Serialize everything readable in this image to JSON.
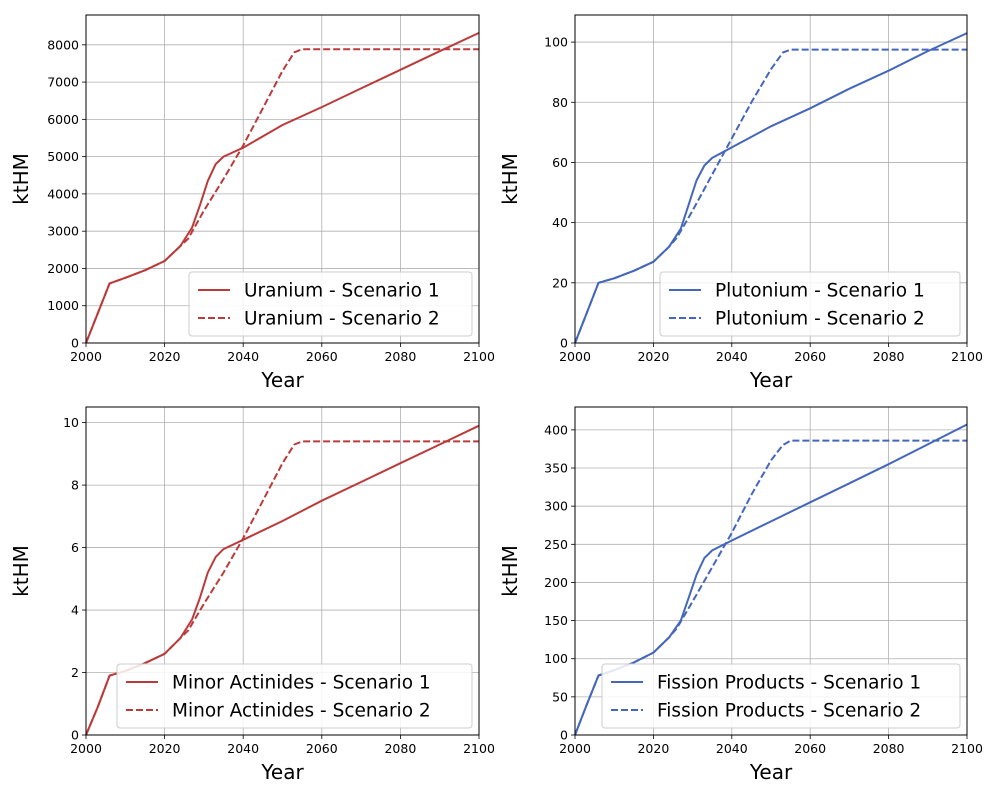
{
  "figure": {
    "background": "#ffffff"
  },
  "chart_data": [
    {
      "type": "line",
      "id": "uranium",
      "xlabel": "Year",
      "ylabel": "ktHM",
      "xlim": [
        2000,
        2100
      ],
      "ylim": [
        0,
        8800
      ],
      "xticks": [
        2000,
        2020,
        2040,
        2060,
        2080,
        2100
      ],
      "yticks": [
        0,
        1000,
        2000,
        3000,
        4000,
        5000,
        6000,
        7000,
        8000
      ],
      "grid": true,
      "legend_position": "lower-right",
      "series": [
        {
          "name": "Uranium - Scenario 1",
          "color": "#bb3b3b",
          "dash": "solid",
          "x": [
            2000,
            2003,
            2006,
            2010,
            2015,
            2020,
            2024,
            2027,
            2029,
            2031,
            2033,
            2035,
            2040,
            2050,
            2060,
            2070,
            2080,
            2090,
            2100
          ],
          "y": [
            0,
            800,
            1600,
            1750,
            1950,
            2200,
            2600,
            3100,
            3700,
            4350,
            4800,
            5000,
            5240,
            5850,
            6330,
            6830,
            7330,
            7830,
            8320
          ]
        },
        {
          "name": "Uranium - Scenario 2",
          "color": "#bb3b3b",
          "dash": "dashed",
          "x": [
            2000,
            2003,
            2006,
            2010,
            2015,
            2020,
            2024,
            2026,
            2030,
            2035,
            2040,
            2045,
            2050,
            2053,
            2055,
            2060,
            2080,
            2100
          ],
          "y": [
            0,
            800,
            1600,
            1750,
            1950,
            2200,
            2600,
            2800,
            3550,
            4400,
            5300,
            6300,
            7300,
            7800,
            7880,
            7880,
            7880,
            7880
          ]
        }
      ]
    },
    {
      "type": "line",
      "id": "plutonium",
      "xlabel": "Year",
      "ylabel": "ktHM",
      "xlim": [
        2000,
        2100
      ],
      "ylim": [
        0,
        109
      ],
      "xticks": [
        2000,
        2020,
        2040,
        2060,
        2080,
        2100
      ],
      "yticks": [
        0,
        20,
        40,
        60,
        80,
        100
      ],
      "grid": true,
      "legend_position": "lower-right",
      "series": [
        {
          "name": "Plutonium - Scenario 1",
          "color": "#4466bb",
          "dash": "solid",
          "x": [
            2000,
            2003,
            2006,
            2010,
            2015,
            2020,
            2024,
            2027,
            2029,
            2031,
            2033,
            2035,
            2040,
            2050,
            2060,
            2070,
            2080,
            2090,
            2100
          ],
          "y": [
            0,
            10,
            20,
            21.5,
            24,
            27,
            32,
            38,
            46,
            54,
            59,
            61.5,
            65,
            72,
            78,
            84.5,
            90.5,
            97,
            103
          ]
        },
        {
          "name": "Plutonium - Scenario 2",
          "color": "#4466bb",
          "dash": "dashed",
          "x": [
            2000,
            2003,
            2006,
            2010,
            2015,
            2020,
            2024,
            2026,
            2030,
            2035,
            2040,
            2045,
            2050,
            2053,
            2055,
            2060,
            2080,
            2100
          ],
          "y": [
            0,
            10,
            20,
            21.5,
            24,
            27,
            32,
            35,
            44,
            56,
            68,
            80,
            91,
            96.5,
            97.5,
            97.5,
            97.5,
            97.5
          ]
        }
      ]
    },
    {
      "type": "line",
      "id": "minor-actinides",
      "xlabel": "Year",
      "ylabel": "ktHM",
      "xlim": [
        2000,
        2100
      ],
      "ylim": [
        0,
        10.5
      ],
      "xticks": [
        2000,
        2020,
        2040,
        2060,
        2080,
        2100
      ],
      "yticks": [
        0,
        2,
        4,
        6,
        8,
        10
      ],
      "grid": true,
      "legend_position": "lower-right",
      "series": [
        {
          "name": "Minor Actinides - Scenario 1",
          "color": "#bb3b3b",
          "dash": "solid",
          "x": [
            2000,
            2003,
            2006,
            2010,
            2015,
            2020,
            2024,
            2027,
            2029,
            2031,
            2033,
            2035,
            2040,
            2050,
            2060,
            2070,
            2080,
            2090,
            2100
          ],
          "y": [
            0,
            0.9,
            1.9,
            2.05,
            2.3,
            2.6,
            3.1,
            3.7,
            4.4,
            5.2,
            5.7,
            5.95,
            6.25,
            6.85,
            7.5,
            8.1,
            8.7,
            9.3,
            9.9
          ]
        },
        {
          "name": "Minor Actinides - Scenario 2",
          "color": "#bb3b3b",
          "dash": "dashed",
          "x": [
            2000,
            2003,
            2006,
            2010,
            2015,
            2020,
            2024,
            2026,
            2030,
            2035,
            2040,
            2045,
            2050,
            2053,
            2055,
            2060,
            2080,
            2100
          ],
          "y": [
            0,
            0.9,
            1.9,
            2.05,
            2.3,
            2.6,
            3.1,
            3.35,
            4.2,
            5.2,
            6.3,
            7.5,
            8.7,
            9.3,
            9.4,
            9.4,
            9.4,
            9.4
          ]
        }
      ]
    },
    {
      "type": "line",
      "id": "fission-products",
      "xlabel": "Year",
      "ylabel": "ktHM",
      "xlim": [
        2000,
        2100
      ],
      "ylim": [
        0,
        430
      ],
      "xticks": [
        2000,
        2020,
        2040,
        2060,
        2080,
        2100
      ],
      "yticks": [
        0,
        50,
        100,
        150,
        200,
        250,
        300,
        350,
        400
      ],
      "grid": true,
      "legend_position": "lower-right",
      "series": [
        {
          "name": "Fission Products - Scenario 1",
          "color": "#4466bb",
          "dash": "solid",
          "x": [
            2000,
            2003,
            2006,
            2010,
            2015,
            2020,
            2024,
            2027,
            2029,
            2031,
            2033,
            2035,
            2040,
            2050,
            2060,
            2070,
            2080,
            2090,
            2100
          ],
          "y": [
            0,
            40,
            78,
            85,
            95,
            108,
            128,
            150,
            180,
            210,
            232,
            242,
            255,
            280,
            305,
            330,
            355,
            381,
            407
          ]
        },
        {
          "name": "Fission Products - Scenario 2",
          "color": "#4466bb",
          "dash": "dashed",
          "x": [
            2000,
            2003,
            2006,
            2010,
            2015,
            2020,
            2024,
            2026,
            2030,
            2035,
            2040,
            2045,
            2050,
            2053,
            2055,
            2060,
            2080,
            2100
          ],
          "y": [
            0,
            40,
            78,
            85,
            95,
            108,
            128,
            140,
            175,
            220,
            265,
            315,
            360,
            380,
            386,
            386,
            386,
            386
          ]
        }
      ]
    }
  ]
}
